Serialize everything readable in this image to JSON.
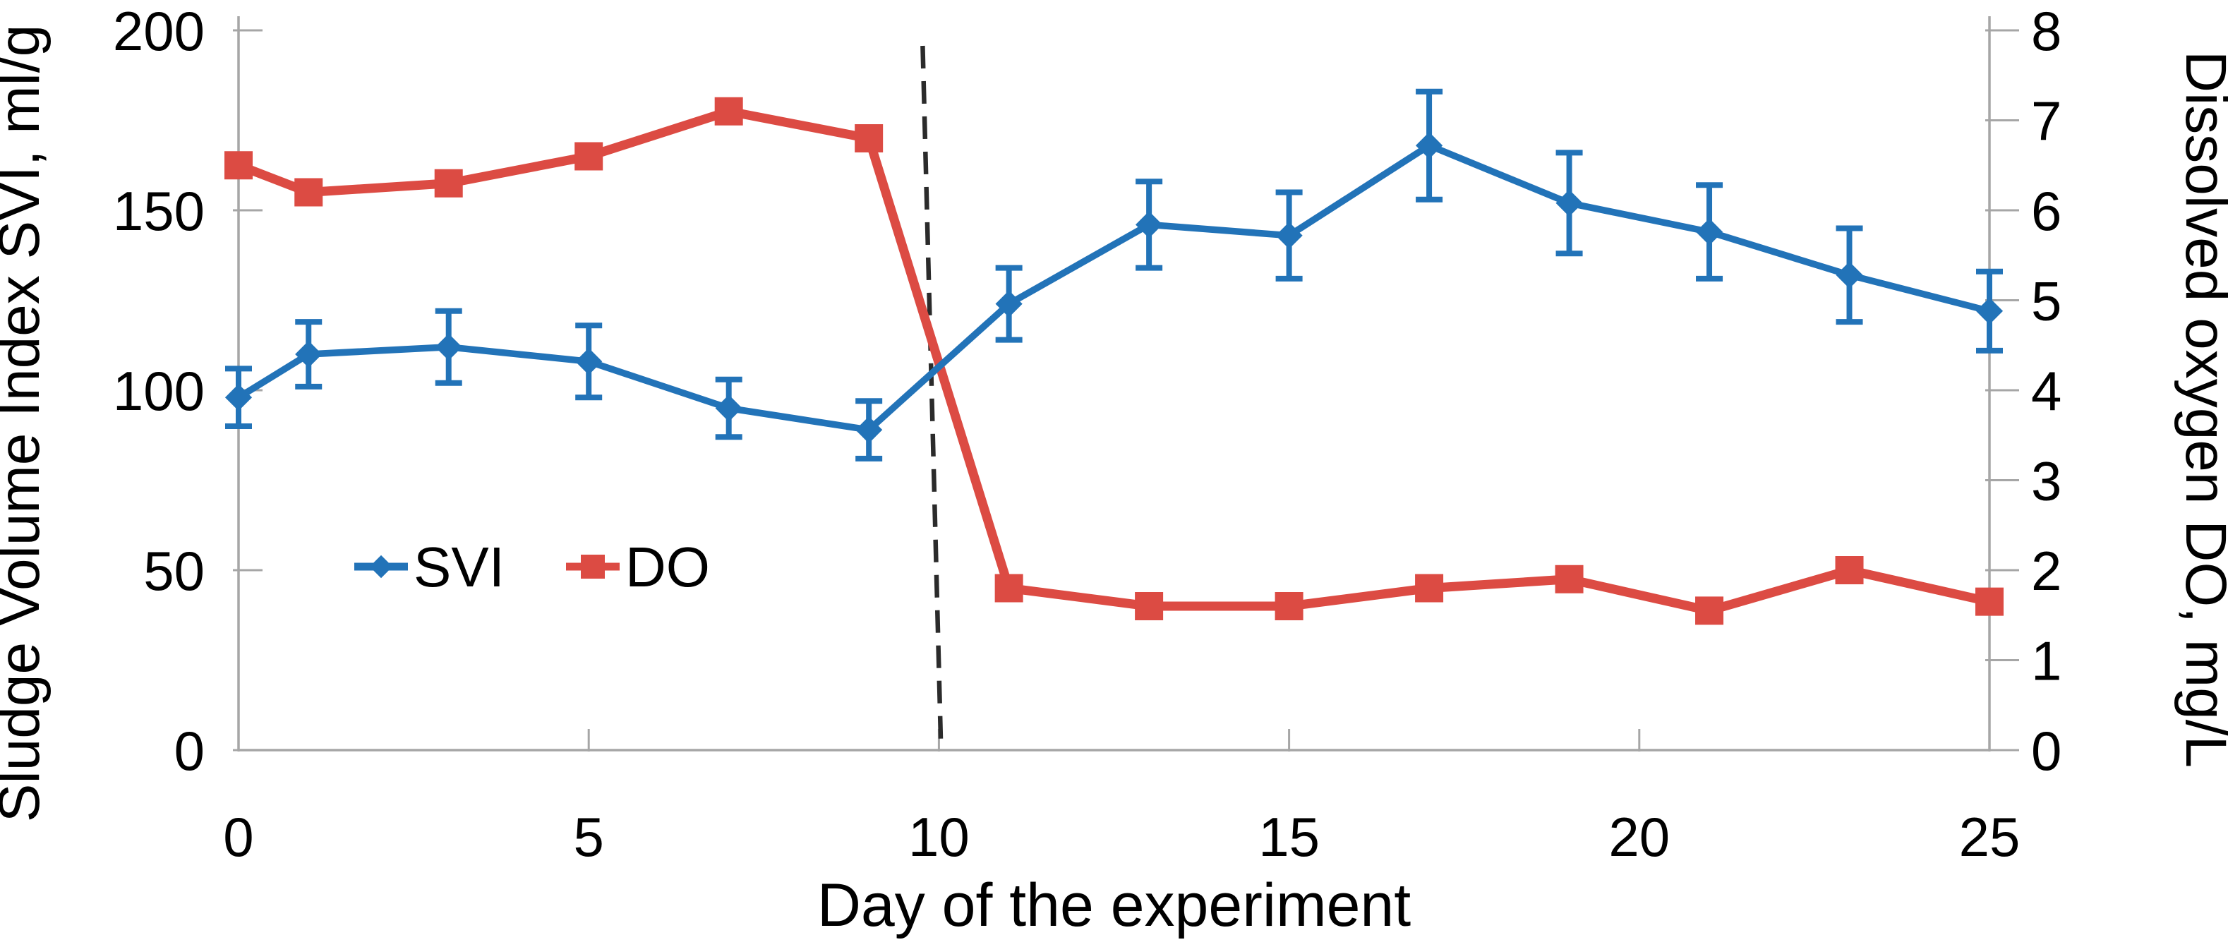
{
  "figure": {
    "background": "#ffffff",
    "axis_line_color": "#a6a6a6",
    "dashed_line_color": "#2b2b2b"
  },
  "chart_data": {
    "type": "line",
    "x": [
      0,
      1,
      3,
      5,
      7,
      9,
      11,
      13,
      15,
      17,
      19,
      21,
      23,
      25
    ],
    "xlabel": "Day of the experiment",
    "x_ticks": [
      0,
      5,
      10,
      15,
      20,
      25
    ],
    "xlim": [
      0,
      25
    ],
    "grid": false,
    "left_axis": {
      "label": "Sludge Volume Index SVI, ml/g",
      "ticks": [
        0,
        50,
        100,
        150,
        200
      ],
      "lim": [
        0,
        200
      ]
    },
    "right_axis": {
      "label": "Dissolved oxygen DO, mg/L",
      "ticks": [
        0,
        1,
        2,
        3,
        4,
        5,
        6,
        7,
        8
      ],
      "lim": [
        0,
        8
      ]
    },
    "series": [
      {
        "name": "SVI",
        "axis": "left",
        "color": "#2273b8",
        "marker": "diamond",
        "values": [
          98,
          110,
          112,
          108,
          95,
          89,
          124,
          146,
          143,
          168,
          152,
          144,
          132,
          122
        ],
        "errors": [
          8,
          9,
          10,
          10,
          8,
          8,
          10,
          12,
          12,
          15,
          14,
          13,
          13,
          11
        ]
      },
      {
        "name": "DO",
        "axis": "right",
        "color": "#dc4b43",
        "marker": "square",
        "values": [
          6.5,
          6.2,
          6.3,
          6.6,
          7.1,
          6.8,
          1.8,
          1.6,
          1.6,
          1.8,
          1.9,
          1.55,
          2.0,
          1.65
        ],
        "errors": null
      }
    ],
    "annotations": [
      {
        "type": "vline",
        "x": 10,
        "style": "dashed",
        "color": "#2b2b2b"
      }
    ],
    "legend": {
      "position": "inside-left-middle",
      "items": [
        "SVI",
        "DO"
      ]
    }
  }
}
